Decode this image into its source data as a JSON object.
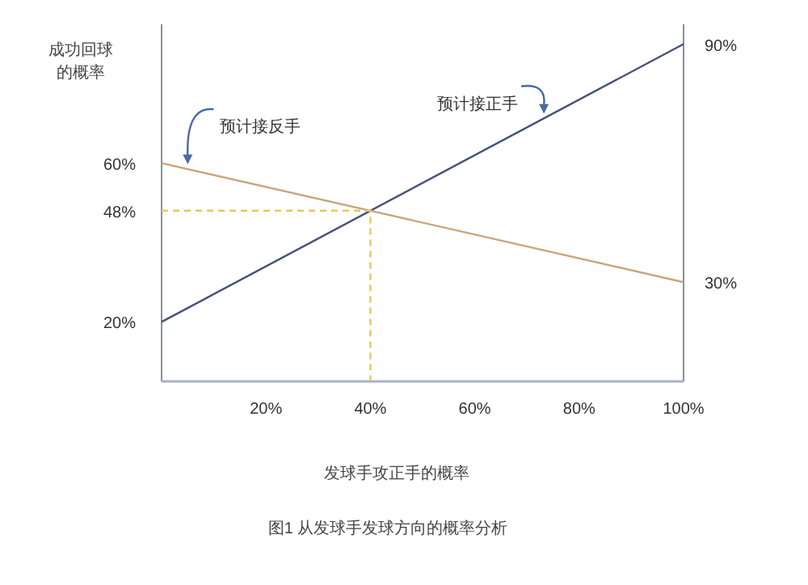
{
  "chart_data": {
    "type": "line",
    "ylabel": "成功回球的概率",
    "xlabel": "发球手攻正手的概率",
    "annotations": [
      "图1 从发球手发球方向的概率分析"
    ],
    "xlim": [
      0,
      100
    ],
    "xticks": [
      {
        "value": 20,
        "label": "20%"
      },
      {
        "value": 40,
        "label": "40%"
      },
      {
        "value": 60,
        "label": "60%"
      },
      {
        "value": 80,
        "label": "80%"
      },
      {
        "value": 100,
        "label": "100%"
      }
    ],
    "ylim": [
      5,
      95
    ],
    "yticks": [
      {
        "value": 20,
        "label": "20%"
      },
      {
        "value": 48,
        "label": "48%"
      },
      {
        "value": 60,
        "label": "60%"
      }
    ],
    "y2lim": [
      5,
      95
    ],
    "y2ticks": [
      {
        "value": 30,
        "label": "30%"
      },
      {
        "value": 90,
        "label": "90%"
      }
    ],
    "legend": false,
    "series": [
      {
        "name": "预计接正手",
        "color": "#44507a",
        "x": [
          0,
          100
        ],
        "values": [
          20,
          90
        ]
      },
      {
        "name": "预计接反手",
        "color": "#c9a57a",
        "x": [
          0,
          100
        ],
        "values": [
          60,
          30
        ]
      },
      {
        "color": "#e6c85a",
        "x": [
          0,
          40,
          40
        ],
        "values": [
          48,
          48,
          5
        ],
        "line_style": "dashed"
      }
    ]
  }
}
